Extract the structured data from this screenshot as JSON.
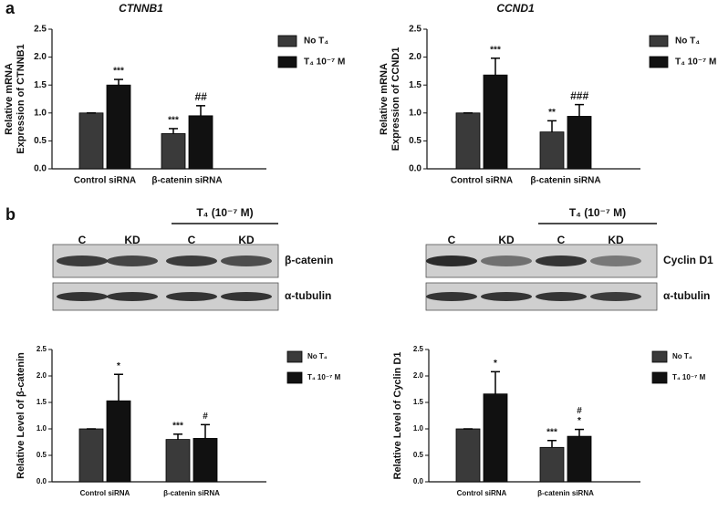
{
  "panels": [
    "a",
    "b"
  ],
  "chart_data": [
    {
      "type": "bar",
      "title": "CTNNB1",
      "ylabel": [
        "Relative mRNA",
        "Expression of CTNNB1"
      ],
      "categories": [
        "Control siRNA",
        "β-catenin siRNA"
      ],
      "series": [
        {
          "name": "No T₄",
          "color": "#3a3a3a",
          "values": [
            1.0,
            0.63
          ],
          "errors": [
            0,
            0.09
          ],
          "annotations": [
            null,
            [
              "***"
            ]
          ]
        },
        {
          "name": "T₄ 10⁻⁷ M",
          "color": "#111111",
          "values": [
            1.5,
            0.95
          ],
          "errors": [
            0.1,
            0.18
          ],
          "annotations": [
            [
              "***"
            ],
            [
              "##"
            ]
          ]
        }
      ],
      "ylim": [
        0,
        2.5
      ],
      "yticks": [
        {
          "value": 0,
          "label": "0.0"
        },
        0.5,
        {
          "value": 1,
          "label": "1.0"
        },
        1.5,
        {
          "value": 2,
          "label": "2.0"
        },
        2.5
      ]
    },
    {
      "type": "bar",
      "title": "CCND1",
      "ylabel": [
        "Relative mRNA",
        "Expression of CCND1"
      ],
      "categories": [
        "Control siRNA",
        "β-catenin siRNA"
      ],
      "series": [
        {
          "name": "No T₄",
          "color": "#3a3a3a",
          "values": [
            1.0,
            0.66
          ],
          "errors": [
            0,
            0.2
          ],
          "annotations": [
            null,
            [
              "**"
            ]
          ]
        },
        {
          "name": "T₄ 10⁻⁷ M",
          "color": "#111111",
          "values": [
            1.68,
            0.94
          ],
          "errors": [
            0.3,
            0.21
          ],
          "annotations": [
            [
              "***"
            ],
            [
              "###"
            ]
          ]
        }
      ],
      "ylim": [
        0,
        2.5
      ],
      "yticks": [
        {
          "value": 0,
          "label": "0.0"
        },
        0.5,
        {
          "value": 1,
          "label": "1.0"
        },
        1.5,
        {
          "value": 2,
          "label": "2.0"
        },
        2.5
      ]
    },
    {
      "type": "bar",
      "ylabel": [
        "Relative Level of β-catenin"
      ],
      "categories": [
        "Control siRNA",
        "β-catenin siRNA"
      ],
      "series": [
        {
          "name": "No T₄",
          "color": "#3a3a3a",
          "values": [
            1.0,
            0.8
          ],
          "errors": [
            0,
            0.1
          ],
          "annotations": [
            null,
            [
              "***"
            ]
          ]
        },
        {
          "name": "T₄ 10⁻⁷ M",
          "color": "#111111",
          "values": [
            1.53,
            0.82
          ],
          "errors": [
            0.5,
            0.26
          ],
          "annotations": [
            [
              "*"
            ],
            [
              "#"
            ]
          ]
        }
      ],
      "ylim": [
        0,
        2.5
      ],
      "yticks": [
        {
          "value": 0,
          "label": "0.0"
        },
        0.5,
        {
          "value": 1,
          "label": "1.0"
        },
        1.5,
        {
          "value": 2,
          "label": "2.0"
        },
        2.5
      ]
    },
    {
      "type": "bar",
      "ylabel": [
        "Relative Level of Cyclin D1"
      ],
      "categories": [
        "Control siRNA",
        "β-catenin siRNA"
      ],
      "series": [
        {
          "name": "No T₄",
          "color": "#3a3a3a",
          "values": [
            1.0,
            0.65
          ],
          "errors": [
            0,
            0.13
          ],
          "annotations": [
            null,
            [
              "***"
            ]
          ]
        },
        {
          "name": "T₄ 10⁻⁷ M",
          "color": "#111111",
          "values": [
            1.66,
            0.86
          ],
          "errors": [
            0.42,
            0.13
          ],
          "annotations": [
            [
              "*"
            ],
            [
              "#",
              "*"
            ]
          ]
        }
      ],
      "ylim": [
        0,
        2.5
      ],
      "yticks": [
        {
          "value": 0,
          "label": "0.0"
        },
        0.5,
        {
          "value": 1,
          "label": "1.0"
        },
        1.5,
        {
          "value": 2,
          "label": "2.0"
        },
        2.5
      ]
    }
  ],
  "blots": [
    {
      "treatment": "T₄ (10⁻⁷ M)",
      "lanes": [
        "C",
        "KD",
        "C",
        "KD"
      ],
      "rows": [
        "β-catenin",
        "α-tubulin"
      ]
    },
    {
      "treatment": "T₄ (10⁻⁷ M)",
      "lanes": [
        "C",
        "KD",
        "C",
        "KD"
      ],
      "rows": [
        "Cyclin D1",
        "α-tubulin"
      ]
    }
  ]
}
